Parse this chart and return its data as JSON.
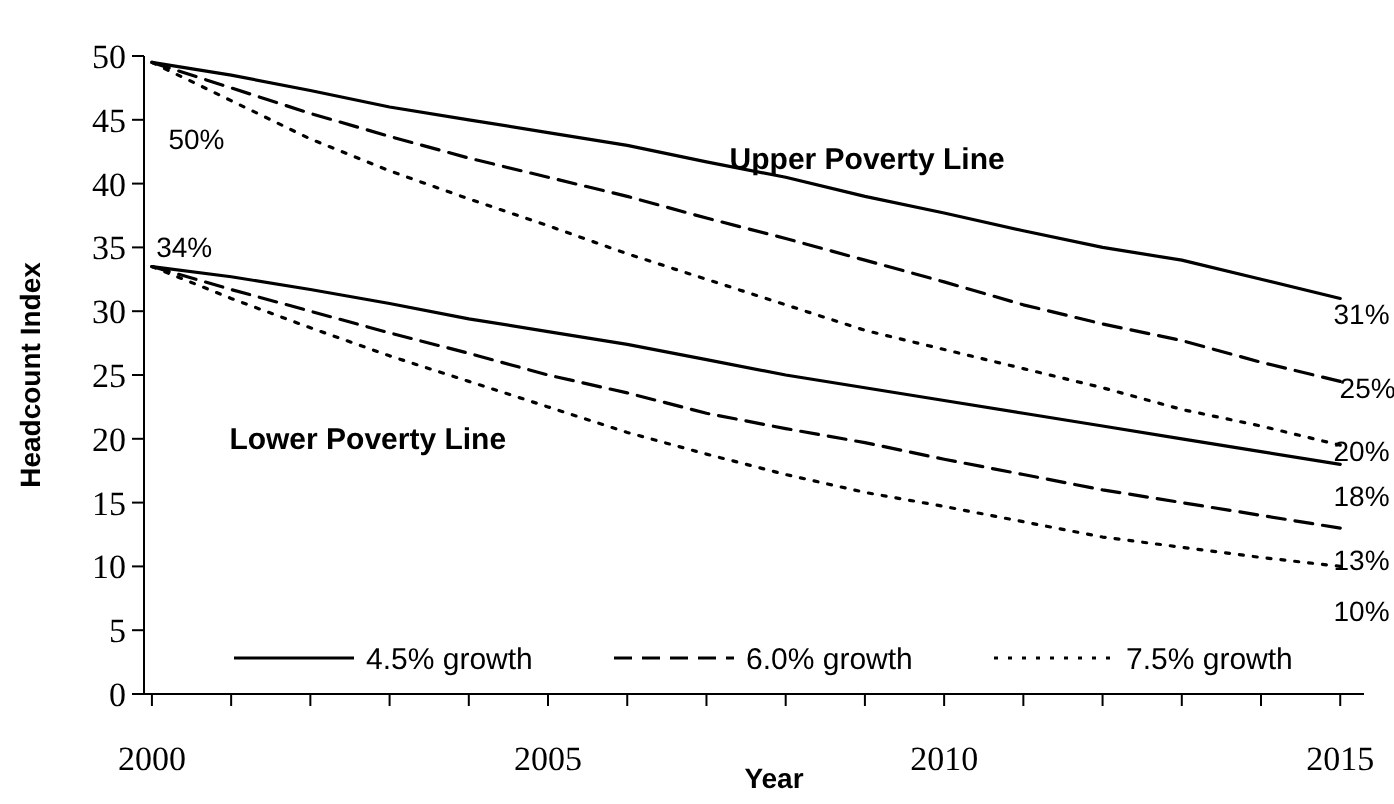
{
  "chart_data": {
    "type": "line",
    "xlabel": "Year",
    "ylabel": "Headcount Index",
    "x": [
      2000,
      2001,
      2002,
      2003,
      2004,
      2005,
      2006,
      2007,
      2008,
      2009,
      2010,
      2011,
      2012,
      2013,
      2014,
      2015
    ],
    "xlim": [
      1999.9,
      2015.3
    ],
    "xticks": [
      2000,
      {
        "value": 2001,
        "label": null
      },
      {
        "value": 2002,
        "label": null
      },
      {
        "value": 2003,
        "label": null
      },
      {
        "value": 2004,
        "label": null
      },
      2005,
      {
        "value": 2006,
        "label": null
      },
      {
        "value": 2007,
        "label": null
      },
      {
        "value": 2008,
        "label": null
      },
      {
        "value": 2009,
        "label": null
      },
      2010,
      {
        "value": 2011,
        "label": null
      },
      {
        "value": 2012,
        "label": null
      },
      {
        "value": 2013,
        "label": null
      },
      {
        "value": 2014,
        "label": null
      },
      2015
    ],
    "ylim": [
      0,
      50
    ],
    "yticks": [
      0,
      5,
      10,
      15,
      20,
      25,
      30,
      35,
      40,
      45,
      50
    ],
    "grid": false,
    "legend": "bottom",
    "marker": "none",
    "series": [
      {
        "name": "4.5% growth",
        "color": "#000000",
        "line_style": "solid",
        "values": [
          49.5,
          48.5,
          47.3,
          46,
          45,
          44,
          43,
          41.7,
          40.5,
          39,
          37.7,
          36.3,
          35,
          34,
          32.5,
          31
        ]
      },
      {
        "name": "6.0% growth",
        "color": "#000000",
        "line_style": "dashed",
        "values": [
          49.5,
          47.5,
          45.5,
          43.7,
          42,
          40.5,
          39,
          37.3,
          35.7,
          34,
          32.3,
          30.5,
          29,
          27.7,
          26,
          24.5
        ]
      },
      {
        "name": "7.5% growth",
        "color": "#000000",
        "line_style": "dotted",
        "values": [
          49.5,
          46.5,
          43.5,
          41,
          38.8,
          36.7,
          34.5,
          32.5,
          30.5,
          28.5,
          27,
          25.5,
          24,
          22.3,
          21,
          19.5
        ]
      },
      {
        "color": "#000000",
        "line_style": "solid",
        "values": [
          33.5,
          32.7,
          31.7,
          30.6,
          29.4,
          28.4,
          27.4,
          26.2,
          25,
          24,
          23,
          22,
          21,
          20,
          19,
          18
        ]
      },
      {
        "color": "#000000",
        "line_style": "dashed",
        "values": [
          33.5,
          31.7,
          30,
          28.3,
          26.7,
          25,
          23.6,
          22,
          20.8,
          19.7,
          18.4,
          17.2,
          16,
          15,
          14,
          13
        ]
      },
      {
        "color": "#000000",
        "line_style": "dotted",
        "values": [
          33.5,
          31,
          28.7,
          26.5,
          24.5,
          22.5,
          20.5,
          18.8,
          17.2,
          15.8,
          14.7,
          13.5,
          12.3,
          11.5,
          10.7,
          10
        ]
      }
    ],
    "annotations": [
      "50%",
      "34%",
      "31%",
      "25%",
      "20%",
      "18%",
      "13%",
      "10%",
      "Upper Poverty Line",
      "Lower Poverty Line"
    ]
  }
}
